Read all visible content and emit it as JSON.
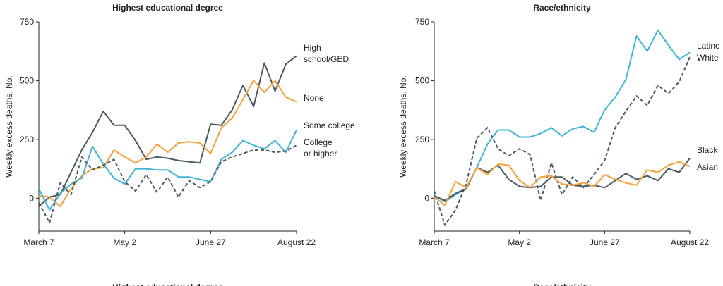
{
  "chart_data": [
    {
      "type": "line",
      "title": "Highest educational degree",
      "y_label": "Weekly excess deaths, No.",
      "categories": [
        "March 7",
        null,
        null,
        null,
        null,
        null,
        null,
        null,
        "May 2",
        null,
        null,
        null,
        null,
        null,
        null,
        null,
        "June 27",
        null,
        null,
        null,
        null,
        null,
        null,
        null,
        "August 22"
      ],
      "ylim": [
        -140,
        750
      ],
      "yticks": [
        0,
        250,
        500,
        750
      ],
      "series": [
        {
          "name": "High school/GED",
          "color": "#4b5a60",
          "dashed": false,
          "values": [
            -35,
            5,
            15,
            110,
            205,
            280,
            370,
            310,
            310,
            245,
            165,
            175,
            170,
            160,
            155,
            150,
            315,
            310,
            375,
            480,
            390,
            575,
            455,
            570,
            605
          ]
        },
        {
          "name": "None",
          "color": "#f5a23c",
          "dashed": false,
          "values": [
            10,
            5,
            -35,
            40,
            95,
            125,
            130,
            205,
            175,
            150,
            175,
            230,
            195,
            235,
            240,
            235,
            190,
            300,
            340,
            420,
            500,
            450,
            500,
            430,
            410
          ]
        },
        {
          "name": "Some college",
          "color": "#3eb4d6",
          "dashed": false,
          "values": [
            40,
            -50,
            20,
            60,
            85,
            220,
            145,
            85,
            60,
            125,
            125,
            120,
            120,
            90,
            90,
            80,
            70,
            165,
            195,
            245,
            225,
            210,
            245,
            195,
            290
          ]
        },
        {
          "name": "College or higher",
          "color": "#4b5a60",
          "dashed": true,
          "values": [
            -20,
            -105,
            65,
            15,
            175,
            120,
            140,
            165,
            70,
            30,
            100,
            25,
            90,
            5,
            75,
            45,
            70,
            155,
            175,
            190,
            205,
            205,
            195,
            200,
            225
          ]
        }
      ]
    },
    {
      "type": "line",
      "title": "Race/ethnicity",
      "y_label": "Weekly excess deaths, No.",
      "categories": [
        "March 7",
        null,
        null,
        null,
        null,
        null,
        null,
        null,
        "May 2",
        null,
        null,
        null,
        null,
        null,
        null,
        null,
        "June 27",
        null,
        null,
        null,
        null,
        null,
        null,
        null,
        "August 22"
      ],
      "ylim": [
        -140,
        750
      ],
      "yticks": [
        0,
        250,
        500,
        750
      ],
      "series": [
        {
          "name": "Latino",
          "color": "#3eb4d6",
          "dashed": false,
          "values": [
            10,
            -15,
            15,
            40,
            130,
            230,
            290,
            290,
            260,
            260,
            275,
            300,
            265,
            295,
            305,
            280,
            375,
            430,
            505,
            690,
            625,
            715,
            650,
            590,
            620
          ]
        },
        {
          "name": "White",
          "color": "#4b5a60",
          "dashed": true,
          "values": [
            30,
            -115,
            -50,
            60,
            255,
            300,
            210,
            180,
            210,
            185,
            -10,
            150,
            15,
            90,
            45,
            100,
            160,
            300,
            370,
            435,
            395,
            480,
            445,
            495,
            600
          ]
        },
        {
          "name": "Black",
          "color": "#4b5a60",
          "dashed": false,
          "values": [
            10,
            -10,
            20,
            40,
            130,
            110,
            140,
            80,
            50,
            45,
            50,
            90,
            90,
            55,
            50,
            55,
            45,
            75,
            105,
            80,
            95,
            75,
            125,
            110,
            170
          ]
        },
        {
          "name": "Asian",
          "color": "#f5a23c",
          "dashed": false,
          "values": [
            5,
            -30,
            70,
            45,
            130,
            100,
            145,
            140,
            75,
            45,
            90,
            95,
            60,
            55,
            65,
            50,
            100,
            80,
            65,
            55,
            120,
            110,
            140,
            155,
            135
          ]
        }
      ]
    }
  ],
  "cropped_titles": [
    "Highest educational degree",
    "Race/ethnicity"
  ]
}
